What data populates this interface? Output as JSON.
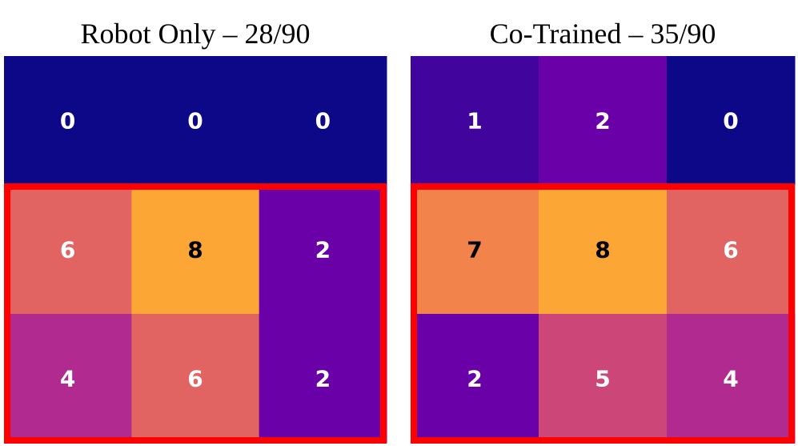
{
  "chart_data": [
    {
      "type": "heatmap",
      "title": "Robot Only – 28/90",
      "values": [
        [
          0,
          0,
          0
        ],
        [
          6,
          8,
          2
        ],
        [
          4,
          6,
          2
        ]
      ],
      "colormap": "plasma",
      "clim": [
        0,
        10
      ],
      "highlight_rows": [
        1,
        2
      ],
      "highlight_color": "#ff0000"
    },
    {
      "type": "heatmap",
      "title": "Co-Trained – 35/90",
      "values": [
        [
          1,
          2,
          0
        ],
        [
          7,
          8,
          6
        ],
        [
          2,
          5,
          4
        ]
      ],
      "colormap": "plasma",
      "clim": [
        0,
        10
      ],
      "highlight_rows": [
        1,
        2
      ],
      "highlight_color": "#ff0000"
    }
  ]
}
